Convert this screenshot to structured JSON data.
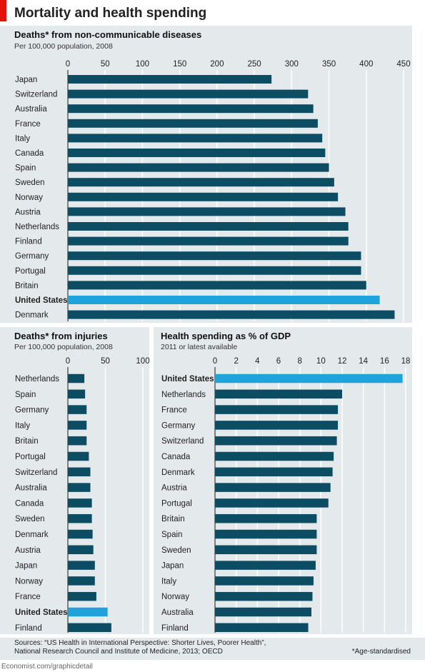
{
  "header": {
    "title": "Mortality and health spending"
  },
  "footer": {
    "sources_line1": "Sources: “US Health in International Perspective: Shorter Lives, Poorer Health”,",
    "sources_line2": "National Research Council and Institute of Medicine, 2013; OECD",
    "footnote": "*Age-standardised",
    "credit": "Economist.com/graphicdetail"
  },
  "colors": {
    "bar": "#0d4d64",
    "highlight": "#1ea3dc",
    "panel_bg": "#e4e9ec",
    "brand_red": "#e3120b",
    "grid": "#ffffff"
  },
  "chart_data": [
    {
      "type": "bar",
      "orientation": "horizontal",
      "title": "Deaths* from non-communicable diseases",
      "subtitle": "Per 100,000 population, 2008",
      "xlim": [
        0,
        450
      ],
      "ticks": [
        0,
        50,
        100,
        150,
        200,
        250,
        300,
        350,
        400,
        450
      ],
      "grid": true,
      "highlight": "United States",
      "categories": [
        "Japan",
        "Switzerland",
        "Australia",
        "France",
        "Italy",
        "Canada",
        "Spain",
        "Sweden",
        "Norway",
        "Austria",
        "Netherlands",
        "Finland",
        "Germany",
        "Portugal",
        "Britain",
        "United States",
        "Denmark"
      ],
      "values": [
        273,
        322,
        329,
        335,
        341,
        345,
        350,
        357,
        362,
        372,
        376,
        376,
        393,
        393,
        400,
        418,
        438
      ]
    },
    {
      "type": "bar",
      "orientation": "horizontal",
      "title": "Deaths* from injuries",
      "subtitle": "Per 100,000 population, 2008",
      "xlim": [
        0,
        100
      ],
      "ticks": [
        0,
        50,
        100
      ],
      "grid": true,
      "highlight": "United States",
      "categories": [
        "Netherlands",
        "Spain",
        "Germany",
        "Italy",
        "Britain",
        "Portugal",
        "Switzerland",
        "Australia",
        "Canada",
        "Sweden",
        "Denmark",
        "Austria",
        "Japan",
        "Norway",
        "France",
        "United States",
        "Finland"
      ],
      "values": [
        22,
        23,
        25,
        25,
        25,
        28,
        30,
        30,
        32,
        32,
        33,
        34,
        36,
        36,
        38,
        53,
        58
      ]
    },
    {
      "type": "bar",
      "orientation": "horizontal",
      "title": "Health spending as % of GDP",
      "subtitle": "2011 or latest available",
      "xlim": [
        0,
        18
      ],
      "ticks": [
        0,
        2,
        4,
        6,
        8,
        10,
        12,
        14,
        16,
        18
      ],
      "grid": true,
      "highlight": "United States",
      "categories": [
        "United States",
        "Netherlands",
        "France",
        "Germany",
        "Switzerland",
        "Canada",
        "Denmark",
        "Austria",
        "Portugal",
        "Britain",
        "Spain",
        "Sweden",
        "Japan",
        "Italy",
        "Norway",
        "Australia",
        "Finland"
      ],
      "values": [
        17.7,
        12.0,
        11.6,
        11.6,
        11.5,
        11.2,
        11.1,
        10.9,
        10.7,
        9.6,
        9.6,
        9.6,
        9.5,
        9.3,
        9.2,
        9.1,
        8.8
      ]
    }
  ]
}
